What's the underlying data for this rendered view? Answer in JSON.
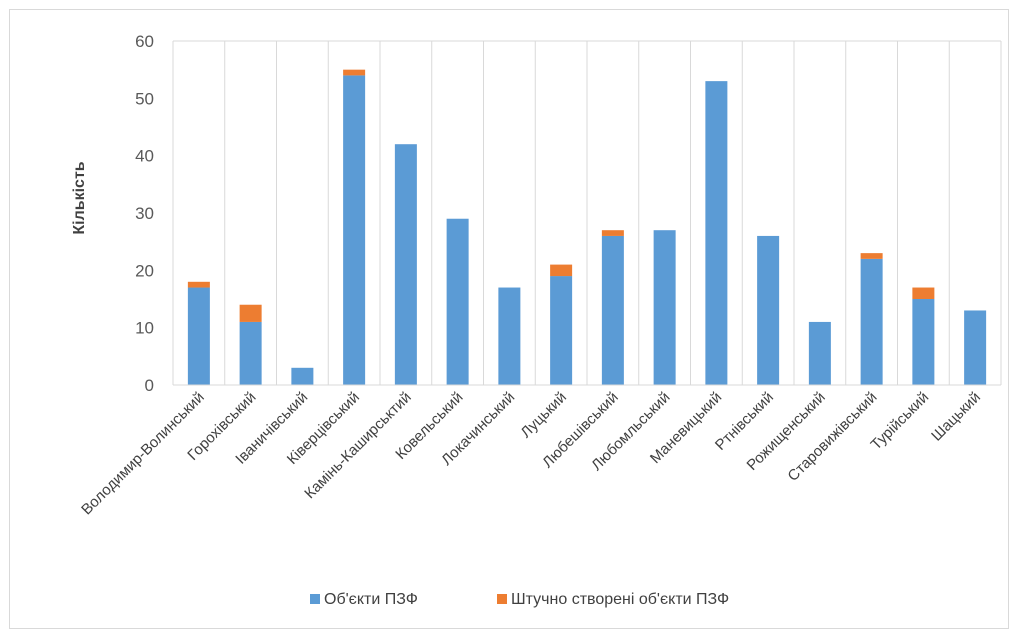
{
  "chart_data": {
    "type": "bar",
    "stacked": true,
    "title": "",
    "xlabel": "",
    "ylabel": "Кількість",
    "ylim": [
      0,
      60
    ],
    "yticks": [
      0,
      10,
      20,
      30,
      40,
      50,
      60
    ],
    "grid": "vertical",
    "legend_position": "bottom",
    "categories": [
      "Володимир-Волинський",
      "Горохівський",
      "Іваничівський",
      "Ківерцівський",
      "Камінь-Каширськтий",
      "Ковельський",
      "Локачинський",
      "Луцький",
      "Любешівський",
      "Любомльський",
      "Маневицький",
      "Ртнівський",
      "Рожищенський",
      "Старовижівський",
      "Турійський",
      "Шацький"
    ],
    "series": [
      {
        "name": "Об'єкти ПЗФ",
        "color": "#5b9bd5",
        "values": [
          17,
          11,
          3,
          54,
          42,
          29,
          17,
          19,
          26,
          27,
          53,
          26,
          11,
          22,
          15,
          13
        ]
      },
      {
        "name": "Штучно створені об'єкти ПЗФ",
        "color": "#ed7d31",
        "values": [
          1,
          3,
          0,
          1,
          0,
          0,
          0,
          2,
          1,
          0,
          0,
          0,
          0,
          1,
          2,
          0
        ]
      }
    ]
  }
}
